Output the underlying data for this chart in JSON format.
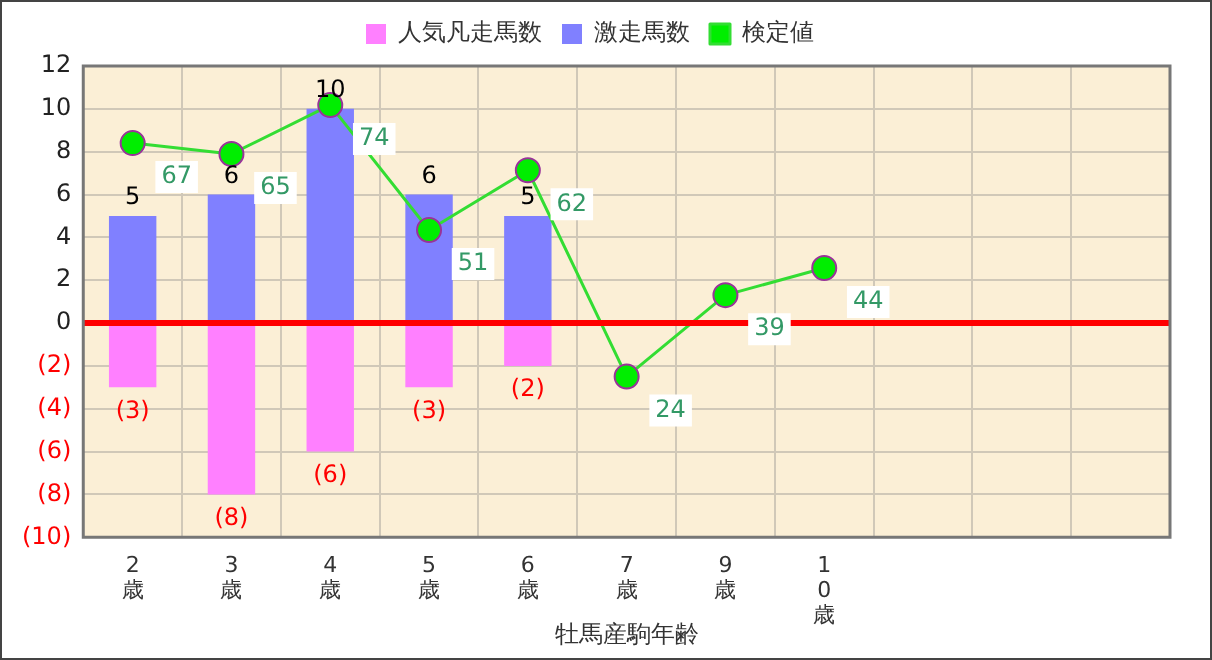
{
  "chart_data": {
    "type": "bar",
    "xlabel": "牡馬産駒年齢",
    "categories": [
      "2歳",
      "3歳",
      "4歳",
      "5歳",
      "6歳",
      "7歳",
      "9歳",
      "10歳",
      null,
      null,
      null
    ],
    "stacked": true,
    "grid": true,
    "legend": "top",
    "marker": "circle",
    "ylim": [
      -10,
      12
    ],
    "yticks": [
      {
        "value": -10,
        "label": "(10)"
      },
      {
        "value": -8,
        "label": "(8)"
      },
      {
        "value": -6,
        "label": "(6)"
      },
      {
        "value": -4,
        "label": "(4)"
      },
      {
        "value": -2,
        "label": "(2)"
      },
      0,
      2,
      4,
      6,
      8,
      10,
      12
    ],
    "y2lim": [
      -5.6,
      81.2
    ],
    "ref_lines": [
      {
        "axis": "y",
        "value": 0,
        "color": "#ff0000"
      }
    ],
    "series": [
      {
        "name": "人気凡走馬数",
        "color": "#ff80ff",
        "values": [
          -3,
          -8,
          -6,
          -3,
          -2,
          null,
          null,
          null,
          null,
          null,
          null
        ],
        "value_labels": [
          "(3)",
          "(8)",
          "(6)",
          "(3)",
          "(2)",
          null,
          null,
          null,
          null,
          null,
          null
        ]
      },
      {
        "name": "激走馬数",
        "color": "#8080ff",
        "values": [
          5,
          6,
          10,
          6,
          5,
          null,
          null,
          null,
          null,
          null,
          null
        ],
        "value_labels": [
          "5",
          "6",
          "10",
          "6",
          "5",
          null,
          null,
          null,
          null,
          null,
          null
        ]
      },
      {
        "name": "検定値",
        "type": "line",
        "axis": "y2",
        "color": "#33dd33",
        "values": [
          67,
          65,
          74,
          51,
          62,
          24,
          39,
          44,
          null,
          null,
          null
        ],
        "value_labels": [
          "67",
          "65",
          "74",
          "51",
          "62",
          "24",
          "39",
          "44",
          null,
          null,
          null
        ]
      }
    ]
  }
}
